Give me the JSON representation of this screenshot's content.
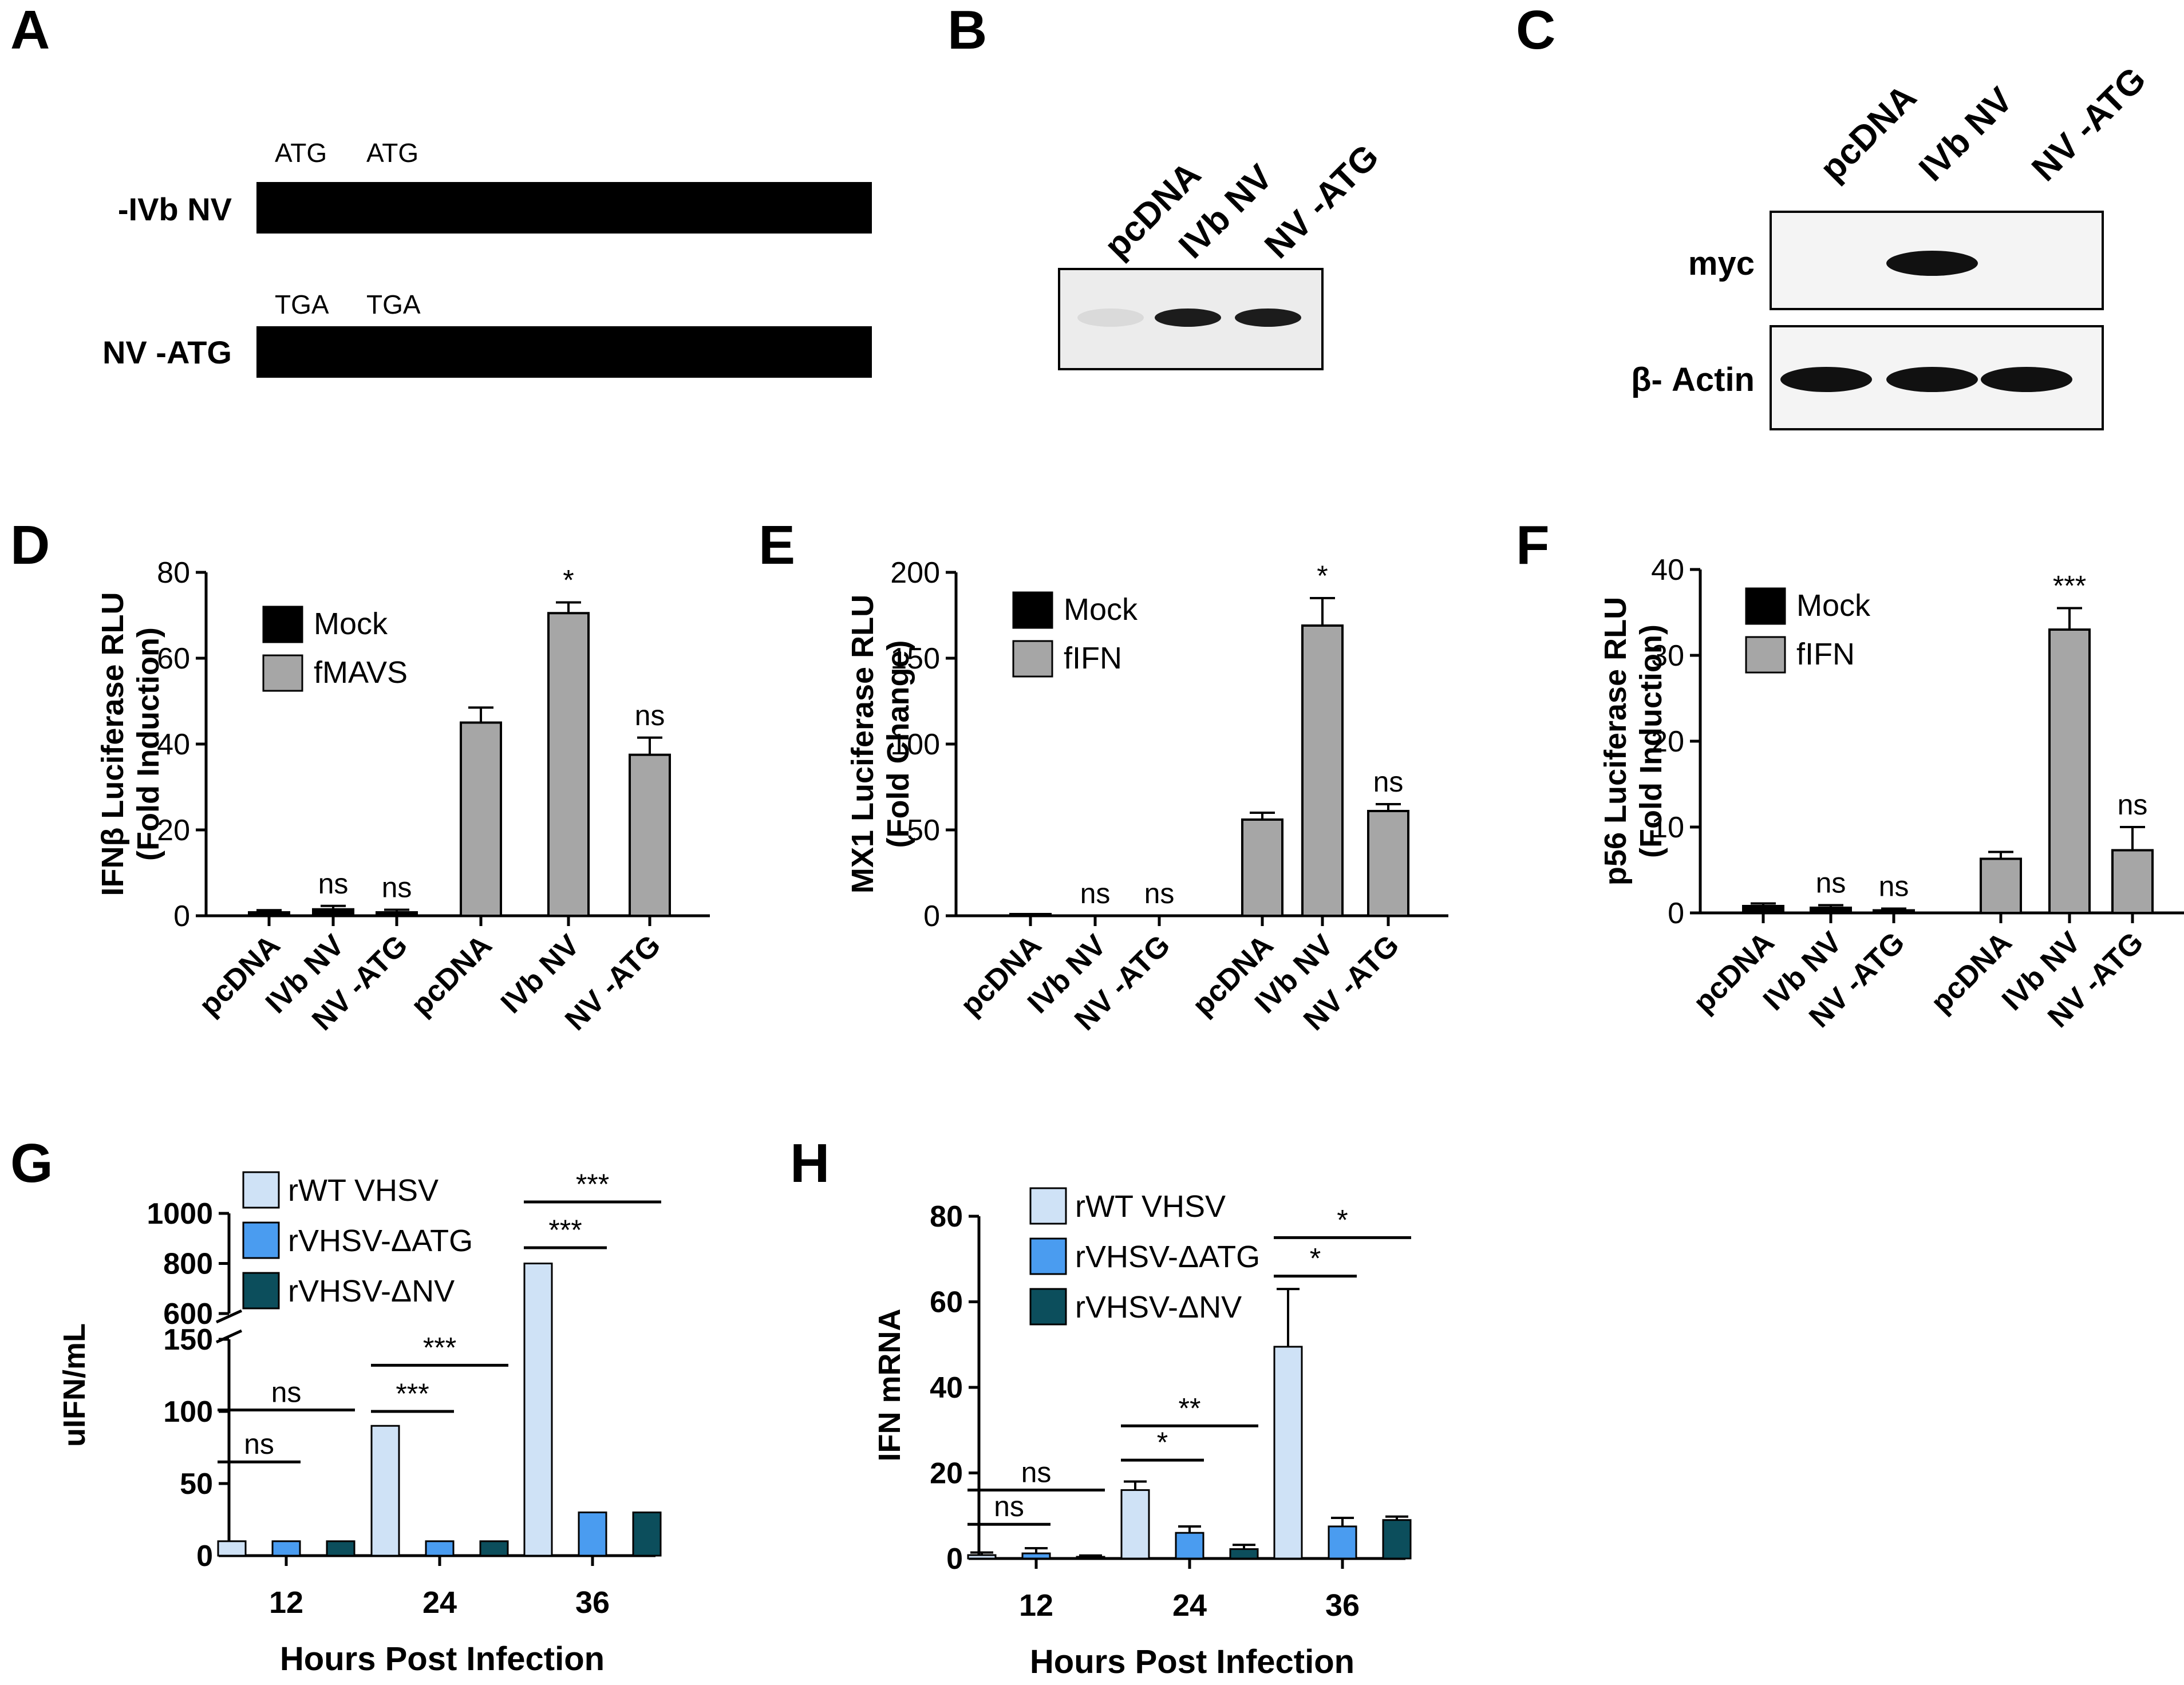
{
  "panels": {
    "A": {
      "letter": "A",
      "constructs": [
        {
          "label": "-IVb NV",
          "codons": [
            "ATG",
            "ATG"
          ]
        },
        {
          "label": "NV -ATG",
          "codons": [
            "TGA",
            "TGA"
          ]
        }
      ]
    },
    "B": {
      "letter": "B",
      "lanes": [
        "pcDNA",
        "IVb NV",
        "NV -ATG"
      ],
      "band_intensity": [
        0.08,
        0.95,
        0.95
      ]
    },
    "C": {
      "letter": "C",
      "lanes": [
        "pcDNA",
        "IVb NV",
        "NV -ATG"
      ],
      "blots": [
        {
          "label": "myc",
          "band_intensity": [
            0,
            1,
            0
          ]
        },
        {
          "label": "β- Actin",
          "band_intensity": [
            1,
            1,
            1
          ]
        }
      ]
    },
    "D": {
      "letter": "D"
    },
    "E": {
      "letter": "E"
    },
    "F": {
      "letter": "F"
    },
    "G": {
      "letter": "G",
      "broken_axis_upper_ticks": [
        "600",
        "800",
        "1000"
      ]
    },
    "H": {
      "letter": "H"
    }
  },
  "colors": {
    "mock": "#000000",
    "treated": "#a6a6a6",
    "rwt": "#cfe2f6",
    "datg": "#4a9cf0",
    "dnv": "#0c4e5c",
    "band": "#111111"
  },
  "chart_data": [
    {
      "id": "D",
      "type": "bar",
      "ylabel": "IFNβ Luciferase RLU (Fold Induction)",
      "ylim": [
        0,
        80
      ],
      "yticks": [
        0,
        20,
        40,
        60,
        80
      ],
      "categories": [
        "pcDNA",
        "IVb NV",
        "NV -ATG",
        "pcDNA",
        "IVb NV",
        "NV -ATG"
      ],
      "series": [
        {
          "name": "Mock",
          "values": [
            0.8,
            1.5,
            0.8,
            null,
            null,
            null
          ],
          "errors": [
            0.5,
            0.8,
            0.6,
            null,
            null,
            null
          ]
        },
        {
          "name": "fMAVS",
          "values": [
            null,
            null,
            null,
            45,
            70.5,
            37.5
          ],
          "errors": [
            null,
            null,
            null,
            3.5,
            2.5,
            4
          ]
        }
      ],
      "significance": [
        "",
        "ns",
        "ns",
        "",
        "*",
        "ns"
      ]
    },
    {
      "id": "E",
      "type": "bar",
      "ylabel": "MX1 Luciferase RLU (Fold Change)",
      "ylim": [
        0,
        200
      ],
      "yticks": [
        0,
        50,
        100,
        150,
        200
      ],
      "categories": [
        "pcDNA",
        "IVb NV",
        "NV -ATG",
        "pcDNA",
        "IVb NV",
        "NV -ATG"
      ],
      "series": [
        {
          "name": "Mock",
          "values": [
            1,
            0,
            0,
            null,
            null,
            null
          ],
          "errors": [
            0,
            0,
            0,
            null,
            null,
            null
          ]
        },
        {
          "name": "fIFN",
          "values": [
            null,
            null,
            null,
            56,
            169,
            61
          ],
          "errors": [
            null,
            null,
            null,
            4,
            16,
            4
          ]
        }
      ],
      "significance": [
        "",
        "ns",
        "ns",
        "",
        "*",
        "ns"
      ]
    },
    {
      "id": "F",
      "type": "bar",
      "ylabel": "p56 Luciferase RLU (Fold Induction)",
      "ylim": [
        0,
        40
      ],
      "yticks": [
        0,
        10,
        20,
        30,
        40
      ],
      "categories": [
        "pcDNA",
        "IVb NV",
        "NV -ATG",
        "pcDNA",
        "IVb NV",
        "NV -ATG"
      ],
      "series": [
        {
          "name": "Mock",
          "values": [
            0.8,
            0.6,
            0.3,
            null,
            null,
            null
          ],
          "errors": [
            0.3,
            0.3,
            0.2,
            null,
            null,
            null
          ]
        },
        {
          "name": "fIFN",
          "values": [
            null,
            null,
            null,
            6.3,
            33,
            7.3
          ],
          "errors": [
            null,
            null,
            null,
            0.8,
            2.5,
            2.7
          ]
        }
      ],
      "significance": [
        "",
        "ns",
        "ns",
        "",
        "***",
        "ns"
      ]
    },
    {
      "id": "G",
      "type": "bar",
      "xlabel": "Hours Post Infection",
      "ylabel": "uIFN/mL",
      "broken_axis": {
        "lower": [
          0,
          150
        ],
        "upper": [
          600,
          1000
        ]
      },
      "yticks": [
        0,
        50,
        100,
        150,
        600,
        800,
        1000
      ],
      "categories": [
        "12",
        "24",
        "36"
      ],
      "series": [
        {
          "name": "rWT VHSV",
          "values": [
            10,
            90,
            800
          ]
        },
        {
          "name": "rVHSV-ΔATG",
          "values": [
            10,
            10,
            30
          ]
        },
        {
          "name": "rVHSV-ΔNV",
          "values": [
            10,
            10,
            30
          ]
        }
      ],
      "brackets": [
        {
          "category": "12",
          "short": "ns",
          "long": "ns"
        },
        {
          "category": "24",
          "short": "***",
          "long": "***"
        },
        {
          "category": "36",
          "short": "***",
          "long": "***"
        }
      ]
    },
    {
      "id": "H",
      "type": "bar",
      "xlabel": "Hours Post Infection",
      "ylabel": "IFN mRNA",
      "ylim": [
        0,
        80
      ],
      "yticks": [
        0,
        20,
        40,
        60,
        80
      ],
      "categories": [
        "12",
        "24",
        "36"
      ],
      "series": [
        {
          "name": "rWT VHSV",
          "values": [
            0.8,
            16,
            49.5
          ],
          "errors": [
            0.6,
            2,
            13.5
          ]
        },
        {
          "name": "rVHSV-ΔATG",
          "values": [
            1.2,
            6,
            7.5
          ],
          "errors": [
            1.2,
            1.5,
            2
          ]
        },
        {
          "name": "rVHSV-ΔNV",
          "values": [
            0.4,
            2.2,
            9
          ],
          "errors": [
            0.3,
            1,
            0.8
          ]
        }
      ],
      "brackets": [
        {
          "category": "12",
          "short": "ns",
          "long": "ns"
        },
        {
          "category": "24",
          "short": "*",
          "long": "**"
        },
        {
          "category": "36",
          "short": "*",
          "long": "*"
        }
      ]
    }
  ]
}
